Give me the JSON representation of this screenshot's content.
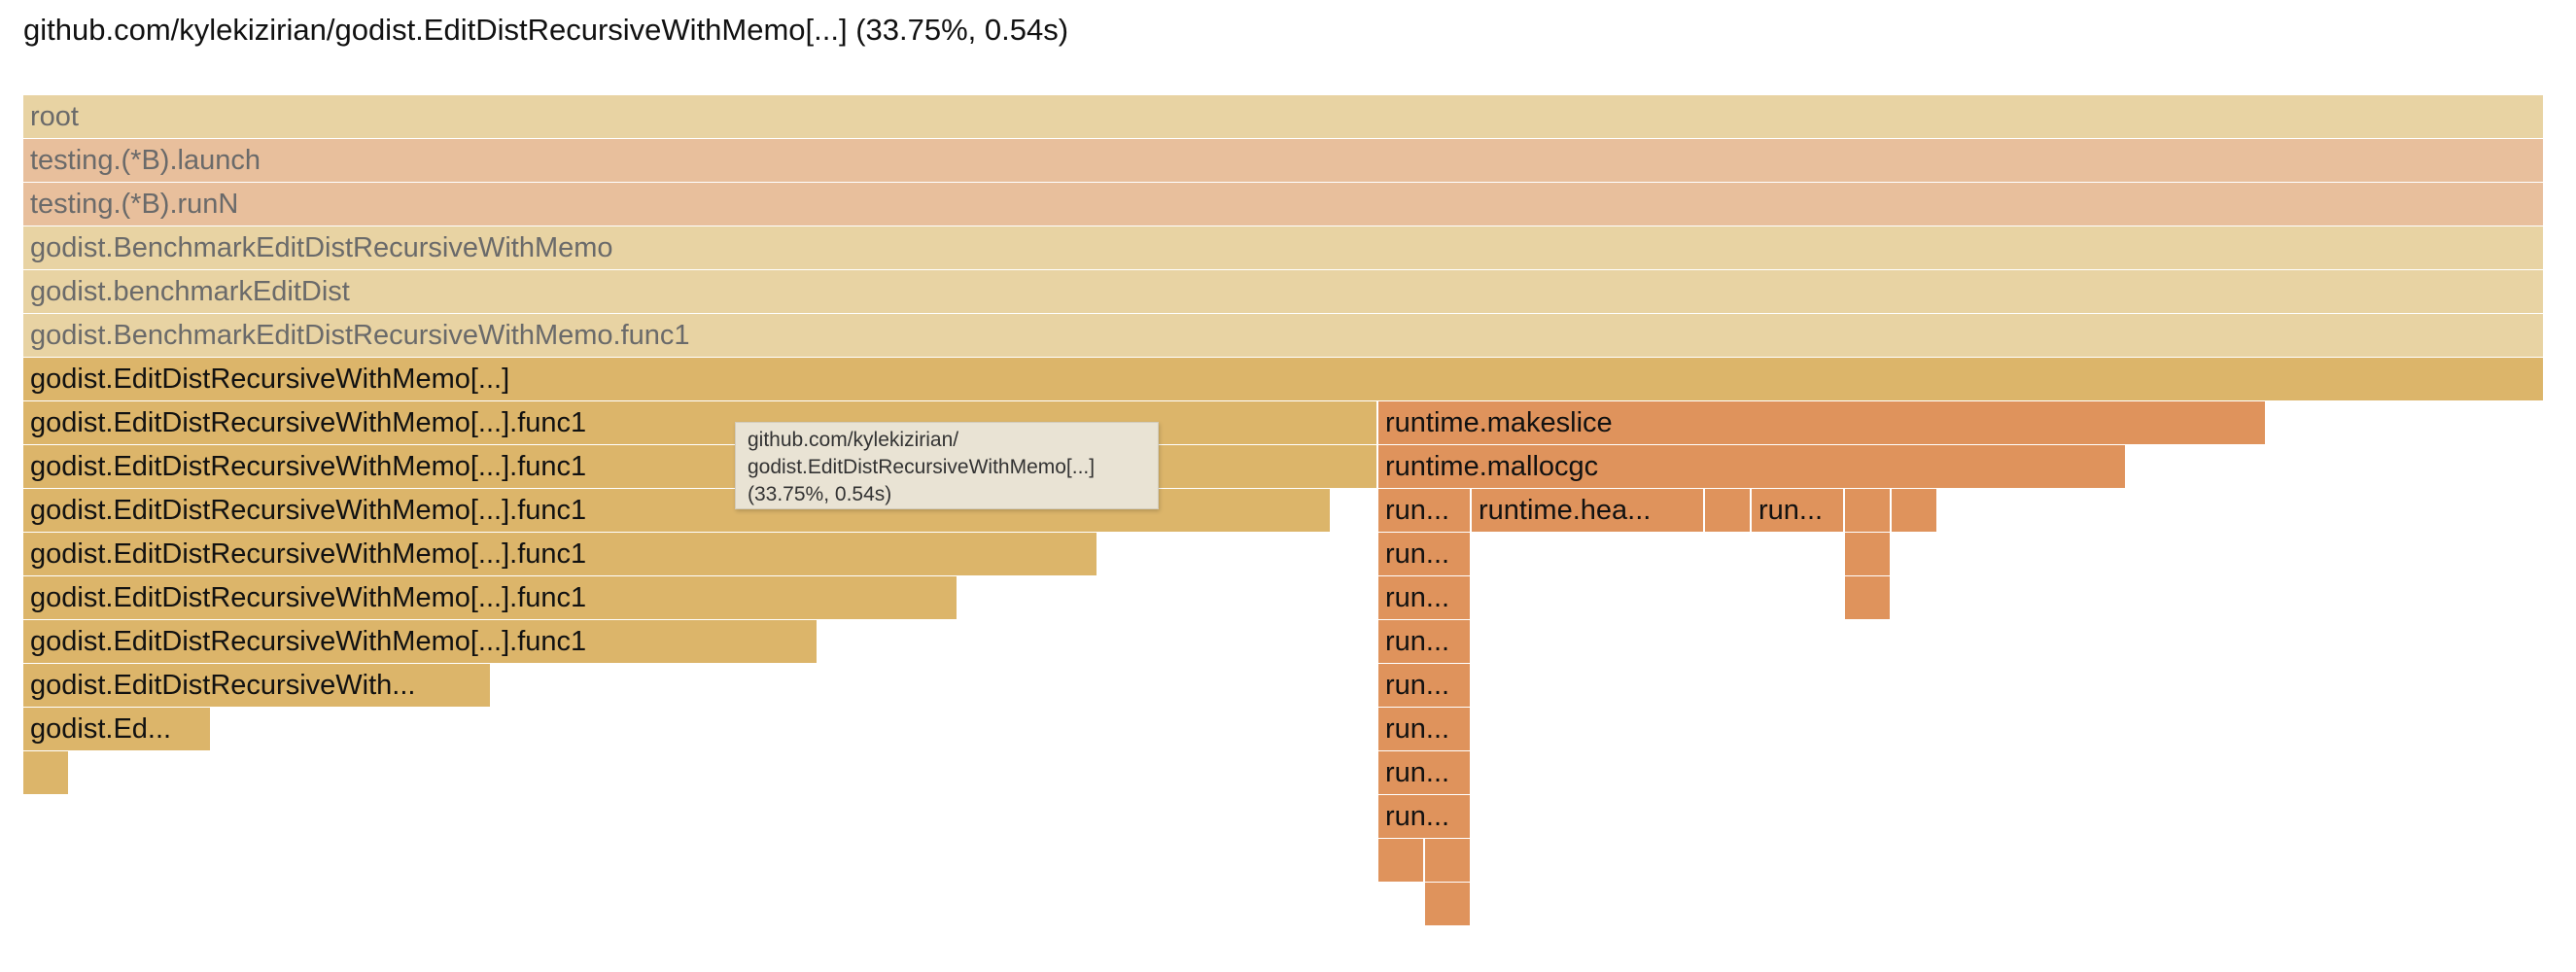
{
  "header": {
    "title": "github.com/kylekizirian/godist.EditDistRecursiveWithMemo[...] (33.75%, 0.54s)"
  },
  "colors": {
    "root": "#e8d3a3",
    "testing": "#e8bf9c",
    "benchmark": "#e8d3a3",
    "memo": "#dcb56a",
    "runtime": "#df935c"
  },
  "frames": {
    "root": "root",
    "launch": "testing.(*B).launch",
    "runN": "testing.(*B).runN",
    "bench": "godist.BenchmarkEditDistRecursiveWithMemo",
    "benchmarkEditDist": "godist.benchmarkEditDist",
    "benchFunc1": "godist.BenchmarkEditDistRecursiveWithMemo.func1",
    "memo": "godist.EditDistRecursiveWithMemo[...]",
    "memoFunc1": "godist.EditDistRecursiveWithMemo[...].func1",
    "memoShort": "godist.EditDistRecursiveWith...",
    "memoShorter": "godist.Ed...",
    "makeslice": "runtime.makeslice",
    "mallocgc": "runtime.mallocgc",
    "run": "run...",
    "heap": "runtime.hea..."
  },
  "tooltip": {
    "line1": "github.com/kylekizirian/",
    "line2": "godist.EditDistRecursiveWithMemo[...]",
    "line3": "(33.75%, 0.54s)"
  }
}
